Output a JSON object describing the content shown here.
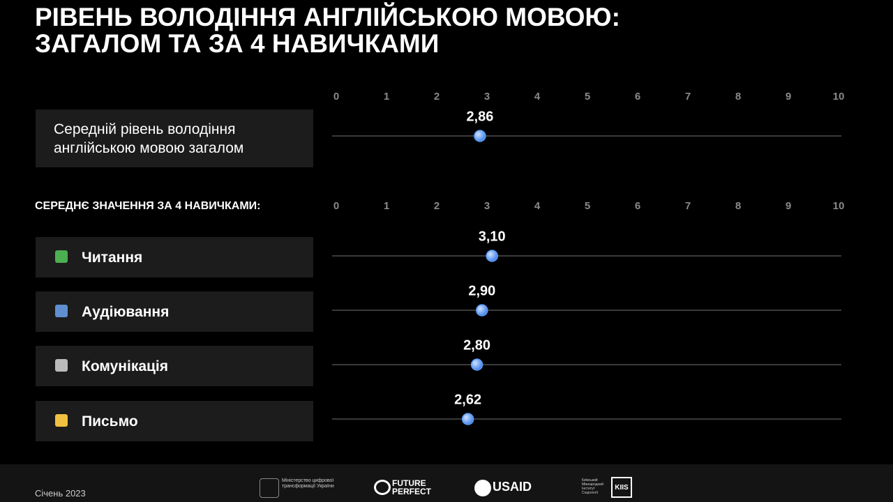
{
  "title": "РІВЕНЬ ВОЛОДІННЯ АНГЛІЙСЬКОЮ МОВОЮ: ЗАГАЛОМ ТА ЗА 4 НАВИЧКАМИ",
  "chart_data": [
    {
      "type": "dot",
      "categories": [
        "Середній рівень володіння англійською мовою загалом"
      ],
      "values": [
        2.86
      ],
      "value_labels": [
        "2,86"
      ],
      "color": "#5b9cf5",
      "xlim": [
        0,
        10
      ],
      "xticks": [
        0,
        1,
        2,
        3,
        4,
        5,
        6,
        7,
        8,
        9,
        10
      ]
    },
    {
      "type": "dot",
      "title": "СЕРЕДНЄ ЗНАЧЕННЯ ЗА 4 НАВИЧКАМИ:",
      "categories": [
        "Читання",
        "Аудіювання",
        "Комунікація",
        "Письмо"
      ],
      "values": [
        3.1,
        2.9,
        2.8,
        2.62
      ],
      "value_labels": [
        "3,10",
        "2,90",
        "2,80",
        "2,62"
      ],
      "color": "#5b9cf5",
      "xlim": [
        0,
        10
      ],
      "xticks": [
        0,
        1,
        2,
        3,
        4,
        5,
        6,
        7,
        8,
        9,
        10
      ]
    }
  ],
  "footer": {
    "date": "Січень 2023",
    "logos": [
      "Міністерство цифрової трансформації України",
      "FUTURE PERFECT",
      "USAID",
      "Київський Міжнародний Інститут Соціології",
      "KIIS"
    ]
  }
}
